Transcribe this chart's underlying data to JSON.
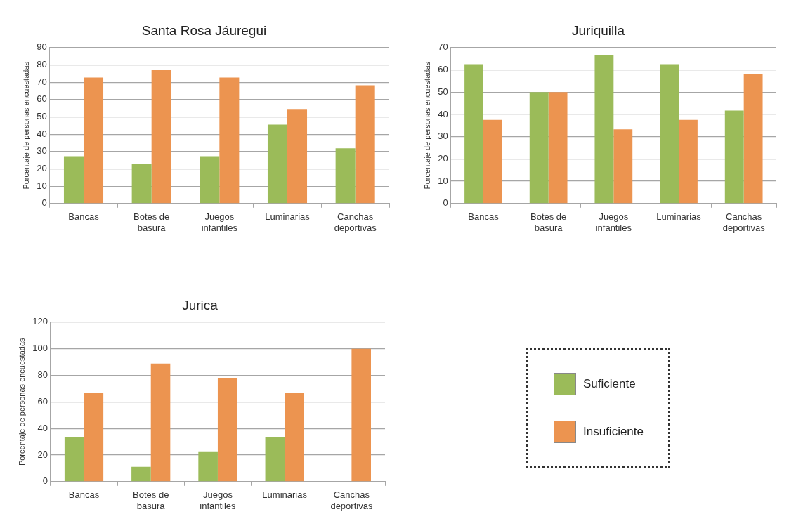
{
  "chart_data": [
    {
      "type": "bar",
      "title": "Santa Rosa Jáuregui",
      "ylabel": "Porcentaje de personas encuestadas",
      "categories": [
        "Bancas",
        "Botes de basura",
        "Juegos infantiles",
        "Luminarias",
        "Canchas deportivas"
      ],
      "ylim": [
        0,
        90
      ],
      "yticks": [
        0,
        10,
        20,
        30,
        40,
        50,
        60,
        70,
        80,
        90
      ],
      "grid": "y",
      "series": [
        {
          "color": "#9bbb59",
          "values": [
            27.3,
            22.7,
            27.3,
            45.5,
            31.8
          ]
        },
        {
          "color": "#ec9450",
          "values": [
            72.7,
            77.3,
            72.7,
            54.5,
            68.2
          ]
        }
      ]
    },
    {
      "type": "bar",
      "title": "Juriquilla",
      "ylabel": "Porcentaje de personas encuestadas",
      "categories": [
        "Bancas",
        "Botes de basura",
        "Juegos infantiles",
        "Luminarias",
        "Canchas deportivas"
      ],
      "ylim": [
        0,
        70
      ],
      "yticks": [
        0,
        10,
        20,
        30,
        40,
        50,
        60,
        70
      ],
      "grid": "y",
      "series": [
        {
          "color": "#9bbb59",
          "values": [
            62.5,
            50,
            66.7,
            62.5,
            41.7
          ]
        },
        {
          "color": "#ec9450",
          "values": [
            37.5,
            50,
            33.3,
            37.5,
            58.3
          ]
        }
      ]
    },
    {
      "type": "bar",
      "title": "Jurica",
      "ylabel": "Porcentaje de personas encuestadas",
      "categories": [
        "Bancas",
        "Botes de basura",
        "Juegos infantiles",
        "Luminarias",
        "Canchas deportivas"
      ],
      "ylim": [
        0,
        120
      ],
      "yticks": [
        0,
        20,
        40,
        60,
        80,
        100,
        120
      ],
      "grid": "y",
      "legend": "right",
      "series": [
        {
          "name": "Suficiente",
          "color": "#9bbb59",
          "values": [
            33.3,
            11.1,
            22.2,
            33.3,
            0
          ]
        },
        {
          "name": "Insuficiente",
          "color": "#ec9450",
          "values": [
            66.7,
            88.9,
            77.8,
            66.7,
            100
          ]
        }
      ]
    }
  ]
}
